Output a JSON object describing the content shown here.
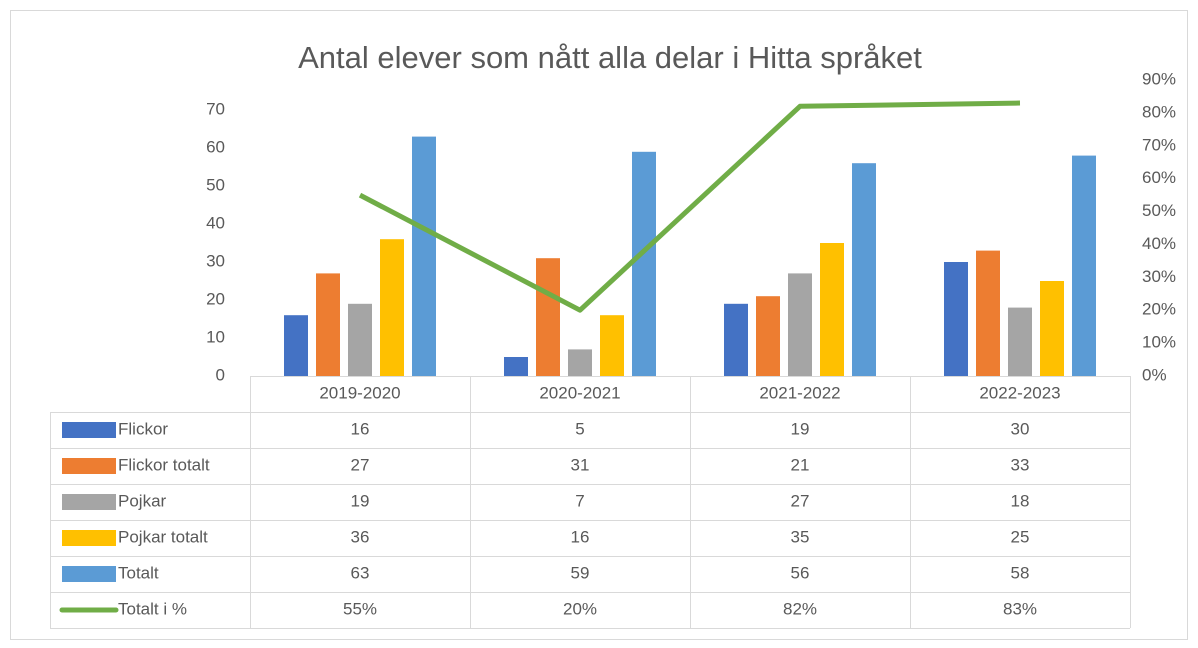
{
  "chart_data": {
    "type": "bar",
    "title": "Antal elever som nått alla delar i Hitta språket",
    "categories": [
      "2019-2020",
      "2020-2021",
      "2021-2022",
      "2022-2023"
    ],
    "series": [
      {
        "name": "Flickor",
        "color": "#4472c4",
        "values": [
          16,
          5,
          19,
          30
        ]
      },
      {
        "name": "Flickor totalt",
        "color": "#ed7d31",
        "values": [
          27,
          31,
          21,
          33
        ]
      },
      {
        "name": "Pojkar",
        "color": "#a5a5a5",
        "values": [
          19,
          7,
          27,
          18
        ]
      },
      {
        "name": "Pojkar totalt",
        "color": "#ffc000",
        "values": [
          36,
          16,
          35,
          25
        ]
      },
      {
        "name": "Totalt",
        "color": "#5b9bd5",
        "values": [
          63,
          59,
          56,
          58
        ]
      },
      {
        "name": "Totalt i %",
        "color": "#70ad47",
        "type": "line",
        "axis": "y2",
        "values": [
          55,
          20,
          82,
          83
        ],
        "value_labels": [
          "55%",
          "20%",
          "82%",
          "83%"
        ]
      }
    ],
    "ylim": [
      0,
      70
    ],
    "yticks": [
      0,
      10,
      20,
      30,
      40,
      50,
      60,
      70
    ],
    "y2lim": [
      0,
      90
    ],
    "y2ticks": [
      {
        "value": 0,
        "label": "0%"
      },
      {
        "value": 10,
        "label": "10%"
      },
      {
        "value": 20,
        "label": "20%"
      },
      {
        "value": 30,
        "label": "30%"
      },
      {
        "value": 40,
        "label": "40%"
      },
      {
        "value": 50,
        "label": "50%"
      },
      {
        "value": 60,
        "label": "60%"
      },
      {
        "value": 70,
        "label": "70%"
      },
      {
        "value": 80,
        "label": "80%"
      },
      {
        "value": 90,
        "label": "90%"
      }
    ],
    "data_table": true
  }
}
